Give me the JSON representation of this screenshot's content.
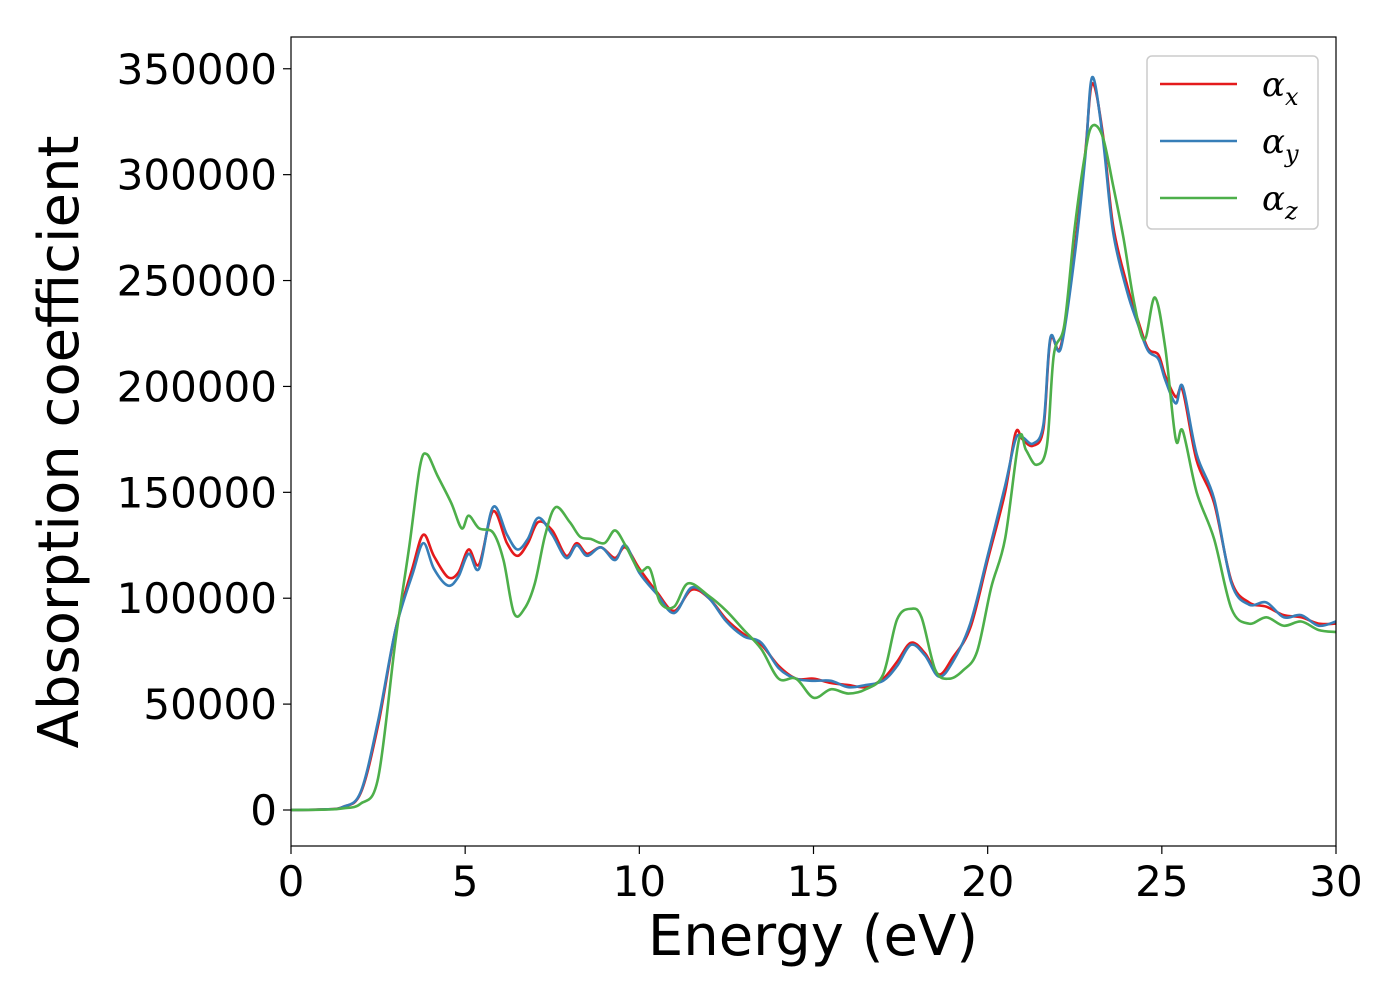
{
  "chart_data": {
    "type": "line",
    "title": "",
    "xlabel": "Energy (eV)",
    "ylabel": "Absorption coefficient",
    "xlim": [
      0,
      30
    ],
    "ylim": [
      -17000,
      365000
    ],
    "xticks": [
      0,
      5,
      10,
      15,
      20,
      25,
      30
    ],
    "yticks": [
      0,
      50000,
      100000,
      150000,
      200000,
      250000,
      300000,
      350000
    ],
    "grid": false,
    "legend_position": "top-right",
    "series": [
      {
        "name": "α",
        "subscript": "x",
        "color": "#e41a1c",
        "points": [
          [
            0,
            0
          ],
          [
            1,
            300
          ],
          [
            1.5,
            1500
          ],
          [
            2,
            8000
          ],
          [
            2.5,
            40000
          ],
          [
            3,
            85000
          ],
          [
            3.5,
            115000
          ],
          [
            3.8,
            130000
          ],
          [
            4.1,
            120000
          ],
          [
            4.5,
            110000
          ],
          [
            4.8,
            112000
          ],
          [
            5.1,
            123000
          ],
          [
            5.4,
            116000
          ],
          [
            5.8,
            141000
          ],
          [
            6.2,
            126000
          ],
          [
            6.5,
            120000
          ],
          [
            6.8,
            126000
          ],
          [
            7.1,
            136000
          ],
          [
            7.5,
            132000
          ],
          [
            7.9,
            120000
          ],
          [
            8.2,
            126000
          ],
          [
            8.5,
            121000
          ],
          [
            8.9,
            124000
          ],
          [
            9.3,
            119000
          ],
          [
            9.6,
            124000
          ],
          [
            10,
            114000
          ],
          [
            10.5,
            103000
          ],
          [
            11,
            94000
          ],
          [
            11.5,
            104000
          ],
          [
            12,
            100000
          ],
          [
            12.5,
            90000
          ],
          [
            13,
            83000
          ],
          [
            13.5,
            78000
          ],
          [
            14,
            68000
          ],
          [
            14.5,
            62000
          ],
          [
            15,
            62000
          ],
          [
            15.5,
            60000
          ],
          [
            16,
            59000
          ],
          [
            16.5,
            58000
          ],
          [
            17,
            62000
          ],
          [
            17.4,
            70000
          ],
          [
            17.8,
            79000
          ],
          [
            18.2,
            74000
          ],
          [
            18.6,
            64000
          ],
          [
            19,
            72000
          ],
          [
            19.5,
            86000
          ],
          [
            20,
            118000
          ],
          [
            20.5,
            150000
          ],
          [
            20.8,
            178000
          ],
          [
            21,
            175000
          ],
          [
            21.3,
            172000
          ],
          [
            21.6,
            180000
          ],
          [
            21.8,
            222000
          ],
          [
            22.1,
            219000
          ],
          [
            22.5,
            265000
          ],
          [
            22.8,
            310000
          ],
          [
            23,
            343000
          ],
          [
            23.3,
            320000
          ],
          [
            23.6,
            276000
          ],
          [
            24,
            248000
          ],
          [
            24.3,
            232000
          ],
          [
            24.6,
            218000
          ],
          [
            24.9,
            215000
          ],
          [
            25.1,
            205000
          ],
          [
            25.4,
            195000
          ],
          [
            25.6,
            198000
          ],
          [
            26,
            165000
          ],
          [
            26.5,
            145000
          ],
          [
            27,
            108000
          ],
          [
            27.5,
            98000
          ],
          [
            28,
            96000
          ],
          [
            28.5,
            92000
          ],
          [
            29,
            91000
          ],
          [
            29.5,
            88000
          ],
          [
            30,
            88000
          ]
        ]
      },
      {
        "name": "α",
        "subscript": "y",
        "color": "#377eb8",
        "points": [
          [
            0,
            0
          ],
          [
            1,
            300
          ],
          [
            1.5,
            1500
          ],
          [
            2,
            8500
          ],
          [
            2.5,
            42000
          ],
          [
            3,
            85000
          ],
          [
            3.5,
            112000
          ],
          [
            3.8,
            126000
          ],
          [
            4.1,
            114000
          ],
          [
            4.5,
            106000
          ],
          [
            4.8,
            110000
          ],
          [
            5.1,
            121000
          ],
          [
            5.4,
            114000
          ],
          [
            5.8,
            143000
          ],
          [
            6.2,
            130000
          ],
          [
            6.5,
            123000
          ],
          [
            6.8,
            128000
          ],
          [
            7.1,
            138000
          ],
          [
            7.5,
            130000
          ],
          [
            7.9,
            119000
          ],
          [
            8.2,
            125000
          ],
          [
            8.5,
            120000
          ],
          [
            8.9,
            124000
          ],
          [
            9.3,
            118000
          ],
          [
            9.6,
            125000
          ],
          [
            10,
            112000
          ],
          [
            10.5,
            102000
          ],
          [
            11,
            93000
          ],
          [
            11.5,
            105000
          ],
          [
            12,
            100000
          ],
          [
            12.5,
            89000
          ],
          [
            13,
            82000
          ],
          [
            13.5,
            79000
          ],
          [
            14,
            67000
          ],
          [
            14.5,
            62000
          ],
          [
            15,
            61000
          ],
          [
            15.5,
            61000
          ],
          [
            16,
            58000
          ],
          [
            16.5,
            59000
          ],
          [
            17,
            61000
          ],
          [
            17.4,
            68000
          ],
          [
            17.8,
            78000
          ],
          [
            18.2,
            73000
          ],
          [
            18.6,
            63000
          ],
          [
            19,
            70000
          ],
          [
            19.5,
            88000
          ],
          [
            20,
            120000
          ],
          [
            20.5,
            153000
          ],
          [
            20.8,
            175000
          ],
          [
            21,
            176000
          ],
          [
            21.3,
            173000
          ],
          [
            21.6,
            182000
          ],
          [
            21.8,
            223000
          ],
          [
            22.1,
            218000
          ],
          [
            22.5,
            262000
          ],
          [
            22.8,
            308000
          ],
          [
            23,
            346000
          ],
          [
            23.3,
            318000
          ],
          [
            23.6,
            273000
          ],
          [
            24,
            245000
          ],
          [
            24.3,
            230000
          ],
          [
            24.6,
            217000
          ],
          [
            24.9,
            213000
          ],
          [
            25.1,
            203000
          ],
          [
            25.4,
            192000
          ],
          [
            25.6,
            200000
          ],
          [
            26,
            168000
          ],
          [
            26.5,
            147000
          ],
          [
            27,
            107000
          ],
          [
            27.5,
            97000
          ],
          [
            28,
            98000
          ],
          [
            28.5,
            91000
          ],
          [
            29,
            92000
          ],
          [
            29.5,
            87000
          ],
          [
            30,
            89000
          ]
        ]
      },
      {
        "name": "α",
        "subscript": "z",
        "color": "#4daf4a",
        "points": [
          [
            0,
            0
          ],
          [
            1,
            200
          ],
          [
            1.5,
            800
          ],
          [
            2,
            3000
          ],
          [
            2.5,
            15000
          ],
          [
            3,
            80000
          ],
          [
            3.4,
            125000
          ],
          [
            3.7,
            162000
          ],
          [
            3.9,
            168000
          ],
          [
            4.2,
            158000
          ],
          [
            4.6,
            145000
          ],
          [
            4.9,
            133000
          ],
          [
            5.1,
            139000
          ],
          [
            5.4,
            133000
          ],
          [
            5.8,
            131000
          ],
          [
            6.1,
            118000
          ],
          [
            6.4,
            93000
          ],
          [
            6.7,
            95000
          ],
          [
            7,
            107000
          ],
          [
            7.3,
            130000
          ],
          [
            7.6,
            143000
          ],
          [
            8,
            136000
          ],
          [
            8.3,
            129000
          ],
          [
            8.6,
            128000
          ],
          [
            9,
            126000
          ],
          [
            9.3,
            132000
          ],
          [
            9.6,
            125000
          ],
          [
            10,
            113000
          ],
          [
            10.3,
            114000
          ],
          [
            10.6,
            98000
          ],
          [
            11,
            96000
          ],
          [
            11.4,
            107000
          ],
          [
            12,
            101000
          ],
          [
            12.5,
            94000
          ],
          [
            13,
            85000
          ],
          [
            13.5,
            76000
          ],
          [
            14,
            62000
          ],
          [
            14.5,
            62000
          ],
          [
            15,
            53000
          ],
          [
            15.5,
            57000
          ],
          [
            16,
            55000
          ],
          [
            16.5,
            57000
          ],
          [
            17,
            64000
          ],
          [
            17.4,
            90000
          ],
          [
            17.8,
            95000
          ],
          [
            18.1,
            91000
          ],
          [
            18.5,
            66000
          ],
          [
            18.9,
            62000
          ],
          [
            19.3,
            66000
          ],
          [
            19.7,
            75000
          ],
          [
            20.1,
            105000
          ],
          [
            20.5,
            128000
          ],
          [
            20.9,
            175000
          ],
          [
            21.1,
            170000
          ],
          [
            21.4,
            163000
          ],
          [
            21.7,
            172000
          ],
          [
            21.9,
            215000
          ],
          [
            22.2,
            229000
          ],
          [
            22.5,
            275000
          ],
          [
            22.8,
            310000
          ],
          [
            23,
            323000
          ],
          [
            23.3,
            318000
          ],
          [
            23.6,
            295000
          ],
          [
            23.9,
            270000
          ],
          [
            24.2,
            240000
          ],
          [
            24.5,
            222000
          ],
          [
            24.8,
            242000
          ],
          [
            25.1,
            218000
          ],
          [
            25.4,
            175000
          ],
          [
            25.6,
            179000
          ],
          [
            26,
            150000
          ],
          [
            26.5,
            128000
          ],
          [
            27,
            95000
          ],
          [
            27.5,
            88000
          ],
          [
            28,
            91000
          ],
          [
            28.5,
            87000
          ],
          [
            29,
            89000
          ],
          [
            29.5,
            85000
          ],
          [
            30,
            84000
          ]
        ]
      }
    ]
  }
}
